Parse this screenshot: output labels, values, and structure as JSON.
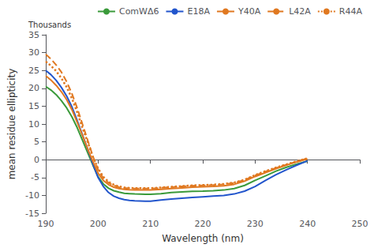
{
  "chart_data": {
    "type": "line",
    "xlabel": "Wavelength (nm)",
    "ylabel": "mean residue ellipticity",
    "annotations": [
      "Thousands"
    ],
    "xlim": [
      190,
      250
    ],
    "ylim": [
      -15,
      35
    ],
    "xticks": [
      190,
      200,
      210,
      220,
      230,
      240,
      250
    ],
    "yticks": [
      -15,
      -10,
      -5,
      0,
      5,
      10,
      15,
      20,
      25,
      30,
      35
    ],
    "grid": false,
    "legend": "upper right",
    "x": [
      190,
      191,
      192,
      193,
      194,
      195,
      196,
      197,
      198,
      199,
      200,
      201,
      202,
      203,
      204,
      205,
      206,
      207,
      208,
      209,
      210,
      212,
      214,
      216,
      218,
      220,
      222,
      224,
      226,
      228,
      230,
      232,
      234,
      236,
      238,
      240
    ],
    "series": [
      {
        "name": "ComWΔ6",
        "color": "#3a9a3a",
        "line_style": "solid",
        "values": [
          20.5,
          19.5,
          18.2,
          16.5,
          14.5,
          12.0,
          9.0,
          5.5,
          2.0,
          -1.5,
          -4.8,
          -6.8,
          -8.0,
          -8.7,
          -9.1,
          -9.4,
          -9.5,
          -9.6,
          -9.65,
          -9.7,
          -9.7,
          -9.5,
          -9.2,
          -9.0,
          -8.85,
          -8.8,
          -8.7,
          -8.5,
          -8.1,
          -7.2,
          -5.8,
          -4.5,
          -3.2,
          -2.1,
          -1.2,
          -0.4
        ]
      },
      {
        "name": "E18A",
        "color": "#2255cc",
        "line_style": "solid",
        "values": [
          25.0,
          23.8,
          22.2,
          20.2,
          17.8,
          14.8,
          11.0,
          7.0,
          3.0,
          -1.2,
          -5.0,
          -7.5,
          -9.2,
          -10.2,
          -10.8,
          -11.2,
          -11.4,
          -11.5,
          -11.55,
          -11.6,
          -11.6,
          -11.3,
          -11.0,
          -10.8,
          -10.6,
          -10.4,
          -10.2,
          -10.0,
          -9.6,
          -8.8,
          -7.5,
          -5.8,
          -4.2,
          -2.8,
          -1.5,
          -0.3
        ]
      },
      {
        "name": "Y40A",
        "color": "#e07820",
        "line_style": "solid",
        "values": [
          23.5,
          22.3,
          20.8,
          19.0,
          16.8,
          14.0,
          10.5,
          6.8,
          3.0,
          -0.5,
          -3.8,
          -5.8,
          -7.0,
          -7.7,
          -8.1,
          -8.3,
          -8.4,
          -8.45,
          -8.5,
          -8.5,
          -8.5,
          -8.3,
          -8.1,
          -7.9,
          -7.7,
          -7.6,
          -7.5,
          -7.3,
          -6.9,
          -6.0,
          -4.7,
          -3.6,
          -2.5,
          -1.5,
          -0.6,
          0.2
        ]
      },
      {
        "name": "L42A",
        "color": "#e07820",
        "line_style": "dashed",
        "values": [
          29.5,
          28.2,
          26.5,
          24.5,
          21.8,
          18.5,
          14.5,
          10.0,
          5.5,
          1.0,
          -2.8,
          -5.2,
          -6.5,
          -7.2,
          -7.7,
          -7.9,
          -8.0,
          -8.1,
          -8.1,
          -8.1,
          -8.1,
          -7.9,
          -7.7,
          -7.5,
          -7.3,
          -7.2,
          -7.1,
          -6.9,
          -6.5,
          -5.7,
          -4.4,
          -3.3,
          -2.3,
          -1.4,
          -0.5,
          0.4
        ]
      },
      {
        "name": "R44A",
        "color": "#e07820",
        "line_style": "dotted",
        "values": [
          27.5,
          26.3,
          24.8,
          22.8,
          20.3,
          17.2,
          13.3,
          9.0,
          5.0,
          0.8,
          -2.5,
          -4.8,
          -6.2,
          -7.0,
          -7.5,
          -7.8,
          -7.9,
          -8.0,
          -8.0,
          -8.0,
          -8.0,
          -7.8,
          -7.6,
          -7.4,
          -7.2,
          -7.1,
          -7.0,
          -6.8,
          -6.4,
          -5.6,
          -4.3,
          -3.2,
          -2.2,
          -1.3,
          -0.4,
          0.4
        ]
      }
    ]
  }
}
